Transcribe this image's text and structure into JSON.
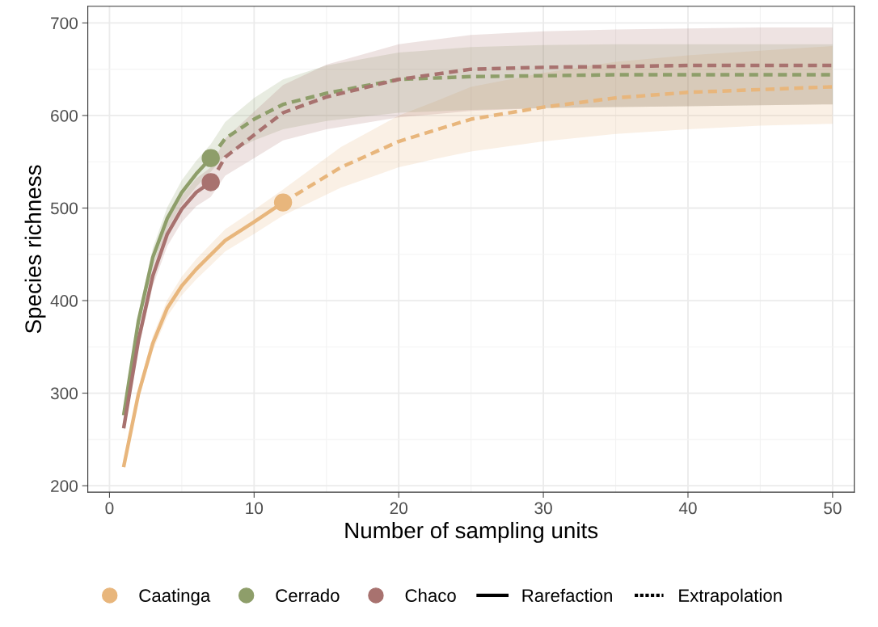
{
  "chart_data": {
    "type": "line",
    "xlabel": "Number of sampling units",
    "ylabel": "Species richness",
    "xlim": [
      -1.5,
      51.5
    ],
    "ylim": [
      193,
      718
    ],
    "xticks": [
      0,
      10,
      20,
      30,
      40,
      50
    ],
    "yticks": [
      200,
      300,
      400,
      500,
      600,
      700
    ],
    "grid": true,
    "legend": "bottom",
    "annotations": [
      "Rarefaction",
      "Extrapolation"
    ],
    "series": [
      {
        "name": "Caatinga",
        "color": "#e8b67c",
        "line_style": "solid",
        "x": [
          1,
          2,
          3,
          4,
          5,
          6,
          8,
          10,
          12
        ],
        "values": [
          222,
          299,
          354,
          392,
          416,
          434,
          465,
          485,
          506
        ],
        "lower": [
          218,
          293,
          346,
          383,
          406,
          423,
          453,
          472,
          492
        ],
        "upper": [
          226,
          305,
          362,
          401,
          426,
          445,
          477,
          498,
          520
        ]
      },
      {
        "color": "#e8b67c",
        "line_style": "dashed",
        "x": [
          12,
          14,
          16,
          18,
          20,
          22.5,
          25,
          30,
          35,
          40,
          45,
          50
        ],
        "values": [
          506,
          525,
          544,
          558,
          572,
          584,
          596,
          609,
          619,
          625,
          628,
          631
        ],
        "lower": [
          492,
          507,
          522,
          533,
          544,
          553,
          561,
          572,
          580,
          585,
          589,
          591
        ],
        "upper": [
          520,
          543,
          566,
          583,
          600,
          615,
          631,
          646,
          658,
          665,
          670,
          675
        ]
      },
      {
        "name": "Cerrado",
        "color": "#8e9e6a",
        "line_style": "solid",
        "x": [
          1,
          2,
          3,
          4,
          5,
          6,
          7
        ],
        "values": [
          278,
          378,
          447,
          489,
          517,
          537,
          554
        ],
        "lower": [
          272,
          370,
          437,
          477,
          504,
          523,
          539
        ],
        "upper": [
          284,
          386,
          457,
          501,
          530,
          551,
          569
        ]
      },
      {
        "color": "#8e9e6a",
        "line_style": "dashed",
        "x": [
          7,
          8,
          10,
          12,
          15,
          20,
          25,
          30,
          35,
          40,
          45,
          50
        ],
        "values": [
          554,
          575,
          596,
          612,
          624,
          639,
          642,
          643,
          644,
          644,
          644,
          644
        ],
        "lower": [
          539,
          557,
          573,
          585,
          594,
          603,
          606,
          608,
          609,
          610,
          611,
          612
        ],
        "upper": [
          569,
          593,
          619,
          639,
          654,
          668,
          674,
          676,
          677,
          677,
          677,
          677
        ]
      },
      {
        "name": "Chaco",
        "color": "#a8726f",
        "line_style": "solid",
        "x": [
          1,
          2,
          3,
          4,
          5,
          6,
          7
        ],
        "values": [
          264,
          357,
          427,
          472,
          499,
          517,
          528
        ],
        "lower": [
          258,
          348,
          416,
          459,
          485,
          502,
          512
        ],
        "upper": [
          270,
          366,
          438,
          485,
          513,
          532,
          544
        ]
      },
      {
        "color": "#a8726f",
        "line_style": "dashed",
        "x": [
          7,
          8,
          10,
          12,
          15,
          20,
          25,
          30,
          35,
          40,
          45,
          50
        ],
        "values": [
          528,
          555,
          579,
          603,
          620,
          639,
          650,
          652,
          653,
          654,
          654,
          654
        ],
        "lower": [
          512,
          535,
          554,
          573,
          585,
          598,
          605,
          608,
          609,
          610,
          611,
          612
        ],
        "upper": [
          544,
          575,
          604,
          633,
          655,
          677,
          687,
          691,
          693,
          694,
          695,
          695
        ]
      },
      {
        "type": "scatter",
        "color": "#e8b67c",
        "x": [
          12
        ],
        "values": [
          506
        ]
      },
      {
        "type": "scatter",
        "color": "#8e9e6a",
        "x": [
          7
        ],
        "values": [
          554
        ]
      },
      {
        "type": "scatter",
        "color": "#a8726f",
        "x": [
          7
        ],
        "values": [
          528
        ]
      }
    ]
  }
}
